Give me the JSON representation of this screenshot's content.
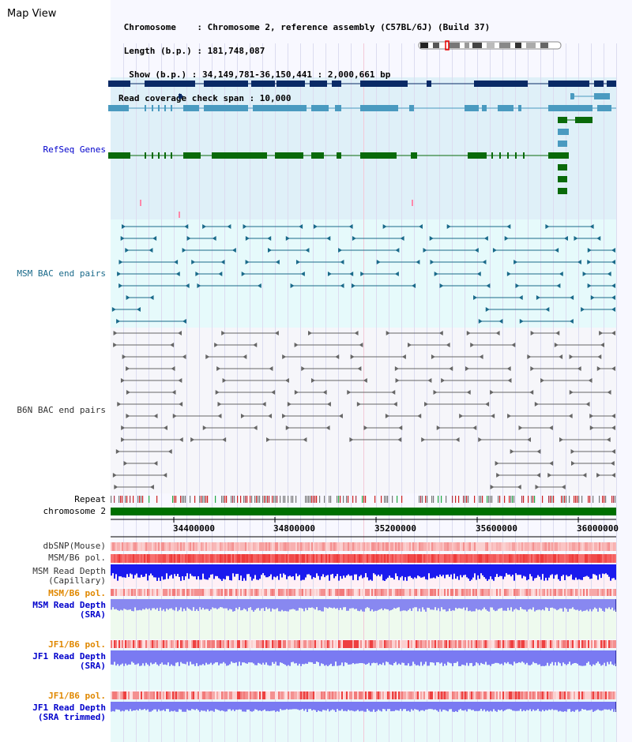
{
  "title": "Map View",
  "header": {
    "lines": [
      " Chromosome    : Chromosome 2, reference assembly (C57BL/6J) (Build 37)",
      " Length (b.p.) : 181,748,087",
      "  Show (b.p.) : 34,149,781-36,150,441 : 2,000,661 bp",
      "Read coverage check span : 10,000"
    ]
  },
  "tracks": {
    "refseq": "RefSeq Genes",
    "msm_bac": "MSM BAC end pairs",
    "b6n_bac": "B6N BAC end pairs",
    "repeat": "Repeat",
    "chromosome": "chromosome 2",
    "dbsnp": "dbSNP(Mouse)",
    "msm_b6_pol": "MSM/B6 pol.",
    "msm_read_depth_cap_1": "MSM Read Depth",
    "msm_read_depth_cap_2": "(Capillary)",
    "msm_b6_pol_2": "MSM/B6 pol.",
    "msm_read_depth_sra_1": "MSM Read Depth",
    "msm_read_depth_sra_2": "(SRA)",
    "jf1_b6_pol": "JF1/B6 pol.",
    "jf1_read_depth_sra_1": "JF1 Read Depth",
    "jf1_read_depth_sra_2": "(SRA)",
    "jf1_b6_pol_2": "JF1/B6 pol.",
    "jf1_read_depth_trim_1": "JF1 Read Depth",
    "jf1_read_depth_trim_2": "(SRA trimmed)"
  },
  "axis": {
    "ticks": [
      "34400000",
      "34800000",
      "35200000",
      "35600000",
      "36000000"
    ]
  },
  "colors": {
    "refseq_dark": "#0a2a66",
    "refseq_mid": "#4a9ac0",
    "refseq_green": "#0a6a0a",
    "msm_bac": "#1a6a8a",
    "b6n_bac": "#666666",
    "label_blue": "#0000cc",
    "label_teal": "#1a6a8a",
    "label_orange": "#e08800",
    "chromosome_bar": "#007000"
  }
}
